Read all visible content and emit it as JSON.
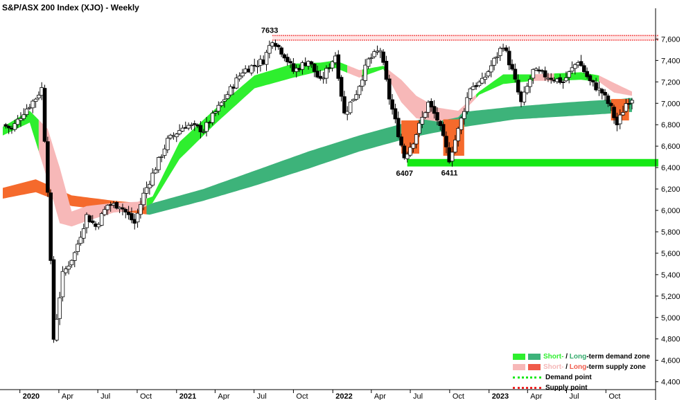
{
  "title": "S&P/ASX 200 Index (XJO) - Weekly",
  "colors": {
    "short_demand": "#2eef2e",
    "long_demand": "#3db37a",
    "short_supply": "#f7b8b8",
    "long_supply": "#f56a2c",
    "demand_point": "#15e815",
    "supply_point": "#ee2222",
    "candle_down": "#000000",
    "candle_up": "#ffffff"
  },
  "legend": {
    "demand_short": "Short-",
    "demand_sep": " / ",
    "demand_long": "Long",
    "demand_rest": "-term demand zone",
    "supply_short": "Short-",
    "supply_sep": " / ",
    "supply_long": "Long",
    "supply_rest": "-term supply zone",
    "demand_point": "Demand point",
    "supply_point": "Supply point"
  },
  "chart_data": {
    "type": "candlestick",
    "title": "S&P/ASX 200 Index (XJO) - Weekly",
    "ylim": [
      4320,
      7900
    ],
    "y_ticks": [
      4400,
      4600,
      4800,
      5000,
      5200,
      5400,
      5600,
      5800,
      6000,
      6200,
      6400,
      6600,
      6800,
      7000,
      7200,
      7400,
      7600
    ],
    "y_tick_labels": [
      "4,400",
      "4,600",
      "4,800",
      "5,000",
      "5,200",
      "5,400",
      "5,600",
      "5,800",
      "6,000",
      "6,200",
      "6,400",
      "6,600",
      "6,800",
      "7,000",
      "7,200",
      "7,400",
      "7,600"
    ],
    "x_axis": {
      "start": "2019-11-22",
      "end": "2023-12-01",
      "ticks": [
        {
          "date": "2020-01-01",
          "label": "2020"
        },
        {
          "date": "2020-04-01",
          "label": "Apr"
        },
        {
          "date": "2020-07-01",
          "label": "Jul"
        },
        {
          "date": "2020-10-01",
          "label": "Oct"
        },
        {
          "date": "2021-01-01",
          "label": "2021"
        },
        {
          "date": "2021-04-01",
          "label": "Apr"
        },
        {
          "date": "2021-07-01",
          "label": "Jul"
        },
        {
          "date": "2021-10-01",
          "label": "Oct"
        },
        {
          "date": "2022-01-01",
          "label": "2022"
        },
        {
          "date": "2022-04-01",
          "label": "Apr"
        },
        {
          "date": "2022-07-01",
          "label": "Jul"
        },
        {
          "date": "2022-10-01",
          "label": "Oct"
        },
        {
          "date": "2023-01-01",
          "label": "2023"
        },
        {
          "date": "2023-04-01",
          "label": "Apr"
        },
        {
          "date": "2023-07-01",
          "label": "Jul"
        },
        {
          "date": "2023-10-01",
          "label": "Oct"
        }
      ]
    },
    "close_path": [
      [
        "2019-11-22",
        6800
      ],
      [
        "2019-12-13",
        6760
      ],
      [
        "2020-01-10",
        6920
      ],
      [
        "2020-02-07",
        7050
      ],
      [
        "2020-02-21",
        7140
      ],
      [
        "2020-03-06",
        6200
      ],
      [
        "2020-03-20",
        4800
      ],
      [
        "2020-04-10",
        5400
      ],
      [
        "2020-05-08",
        5600
      ],
      [
        "2020-06-05",
        5950
      ],
      [
        "2020-06-26",
        5850
      ],
      [
        "2020-07-24",
        6050
      ],
      [
        "2020-08-21",
        6050
      ],
      [
        "2020-09-25",
        5880
      ],
      [
        "2020-10-16",
        6150
      ],
      [
        "2020-11-13",
        6400
      ],
      [
        "2020-12-11",
        6650
      ],
      [
        "2021-01-22",
        6800
      ],
      [
        "2021-03-05",
        6750
      ],
      [
        "2021-04-16",
        7000
      ],
      [
        "2021-06-04",
        7300
      ],
      [
        "2021-07-23",
        7400
      ],
      [
        "2021-08-13",
        7600
      ],
      [
        "2021-09-10",
        7450
      ],
      [
        "2021-10-01",
        7300
      ],
      [
        "2021-11-05",
        7400
      ],
      [
        "2021-12-03",
        7200
      ],
      [
        "2022-01-07",
        7450
      ],
      [
        "2022-01-28",
        6900
      ],
      [
        "2022-02-25",
        7100
      ],
      [
        "2022-03-25",
        7400
      ],
      [
        "2022-04-22",
        7500
      ],
      [
        "2022-05-13",
        7050
      ],
      [
        "2022-06-17",
        6500
      ],
      [
        "2022-07-08",
        6650
      ],
      [
        "2022-08-12",
        7000
      ],
      [
        "2022-09-02",
        6850
      ],
      [
        "2022-09-30",
        6480
      ],
      [
        "2022-10-21",
        6750
      ],
      [
        "2022-11-18",
        7150
      ],
      [
        "2022-12-16",
        7200
      ],
      [
        "2023-01-13",
        7400
      ],
      [
        "2023-02-03",
        7550
      ],
      [
        "2023-02-24",
        7300
      ],
      [
        "2023-03-17",
        7000
      ],
      [
        "2023-04-14",
        7300
      ],
      [
        "2023-05-19",
        7250
      ],
      [
        "2023-06-23",
        7200
      ],
      [
        "2023-07-28",
        7400
      ],
      [
        "2023-08-25",
        7200
      ],
      [
        "2023-09-22",
        7100
      ],
      [
        "2023-10-13",
        6950
      ],
      [
        "2023-10-27",
        6800
      ],
      [
        "2023-11-17",
        7000
      ],
      [
        "2023-12-01",
        7050
      ]
    ],
    "short_term_zone": [
      [
        "2019-11-22",
        6700,
        6780
      ],
      [
        "2020-01-24",
        6820,
        6930
      ],
      [
        "2020-03-06",
        6280,
        6760
      ],
      [
        "2020-04-03",
        5880,
        6400
      ],
      [
        "2020-05-01",
        5850,
        5990
      ],
      [
        "2020-06-05",
        5900,
        6040
      ],
      [
        "2020-08-07",
        5980,
        6070
      ],
      [
        "2020-10-02",
        6000,
        6080
      ],
      [
        "2020-11-06",
        6070,
        6130
      ],
      [
        "2021-01-08",
        6480,
        6640
      ],
      [
        "2021-04-02",
        6810,
        6950
      ],
      [
        "2021-07-02",
        7140,
        7260
      ],
      [
        "2021-10-01",
        7240,
        7370
      ],
      [
        "2021-12-03",
        7300,
        7380
      ],
      [
        "2022-01-07",
        7330,
        7400
      ],
      [
        "2022-03-04",
        7240,
        7310
      ],
      [
        "2022-04-29",
        7320,
        7350
      ],
      [
        "2022-06-10",
        7010,
        7220
      ],
      [
        "2022-07-15",
        6860,
        7070
      ],
      [
        "2022-09-02",
        6830,
        6960
      ],
      [
        "2022-10-21",
        6870,
        6930
      ],
      [
        "2022-12-09",
        7080,
        7110
      ],
      [
        "2023-02-03",
        7180,
        7270
      ],
      [
        "2023-04-14",
        7210,
        7270
      ],
      [
        "2023-06-09",
        7210,
        7280
      ],
      [
        "2023-08-04",
        7220,
        7290
      ],
      [
        "2023-09-15",
        7200,
        7260
      ],
      [
        "2023-10-20",
        7100,
        7190
      ],
      [
        "2023-12-01",
        7070,
        7110
      ]
    ],
    "long_term_zone": [
      [
        "2019-11-22",
        6110,
        6210
      ],
      [
        "2020-02-07",
        6170,
        6290
      ],
      [
        "2020-05-01",
        6040,
        6140
      ],
      [
        "2020-08-07",
        6000,
        6090
      ],
      [
        "2020-10-30",
        5960,
        6060
      ],
      [
        "2021-03-05",
        6090,
        6200
      ],
      [
        "2021-07-02",
        6230,
        6370
      ],
      [
        "2021-11-05",
        6390,
        6550
      ],
      [
        "2022-03-04",
        6550,
        6700
      ],
      [
        "2022-07-01",
        6680,
        6830
      ],
      [
        "2022-11-04",
        6780,
        6920
      ],
      [
        "2023-03-03",
        6850,
        6970
      ],
      [
        "2023-07-07",
        6880,
        7010
      ],
      [
        "2023-11-03",
        6910,
        7040
      ],
      [
        "2023-12-01",
        6920,
        7050
      ]
    ],
    "zone_states": [
      {
        "from": "2019-11-22",
        "to": "2020-02-14",
        "short": "demand",
        "long": "supply"
      },
      {
        "from": "2020-02-14",
        "to": "2020-10-23",
        "short": "supply",
        "long": "supply"
      },
      {
        "from": "2020-10-23",
        "to": "2022-02-04",
        "short": "demand",
        "long": "demand"
      },
      {
        "from": "2022-02-04",
        "to": "2022-03-11",
        "short": "supply",
        "long": "demand"
      },
      {
        "from": "2022-03-11",
        "to": "2022-05-06",
        "short": "demand",
        "long": "demand"
      },
      {
        "from": "2022-05-06",
        "to": "2022-12-02",
        "short": "supply",
        "long": "demand"
      },
      {
        "from": "2022-12-02",
        "to": "2023-04-14",
        "short": "demand",
        "long": "demand"
      },
      {
        "from": "2023-04-14",
        "to": "2023-06-02",
        "short": "supply",
        "long": "demand"
      },
      {
        "from": "2023-06-02",
        "to": "2023-09-15",
        "short": "demand",
        "long": "demand"
      },
      {
        "from": "2023-09-15",
        "to": "2023-12-01",
        "short": "supply",
        "long": "demand"
      }
    ],
    "supply_point": {
      "value": 7633,
      "from": "2021-08-13",
      "label": "7633",
      "band": [
        7590,
        7640
      ]
    },
    "demand_point": {
      "value": 6407,
      "from": "2022-06-24",
      "band": [
        6410,
        6480
      ]
    },
    "annotations": [
      {
        "text": "7633",
        "date": "2021-08-13",
        "value": 7633
      },
      {
        "text": "6407",
        "date": "2022-06-24",
        "value": 6407
      },
      {
        "text": "6411",
        "date": "2022-10-07",
        "value": 6411
      }
    ],
    "price_boxes": [
      {
        "from": "2022-06-10",
        "to": "2022-07-22",
        "low": 6530,
        "high": 6840,
        "role": "supply"
      },
      {
        "from": "2022-09-16",
        "to": "2022-11-04",
        "low": 6510,
        "high": 6850,
        "role": "supply"
      },
      {
        "from": "2023-10-13",
        "to": "2023-11-24",
        "low": 6840,
        "high": 7040,
        "role": "supply"
      }
    ]
  }
}
